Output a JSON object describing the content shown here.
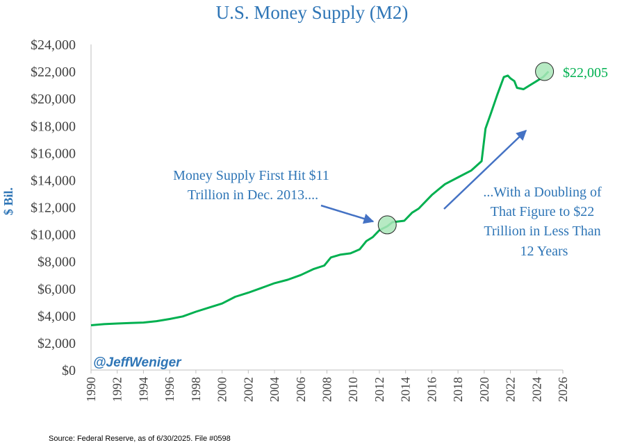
{
  "chart_data": {
    "type": "line",
    "title": "U.S. Money Supply (M2)",
    "ylabel": "$ Bil.",
    "xlabel": "",
    "xlim": [
      1990,
      2026
    ],
    "ylim": [
      0,
      24000
    ],
    "x_ticks": [
      1990,
      1992,
      1994,
      1996,
      1998,
      2000,
      2002,
      2004,
      2006,
      2008,
      2010,
      2012,
      2014,
      2016,
      2018,
      2020,
      2022,
      2024,
      2026
    ],
    "x_tick_labels": [
      "1990",
      "1992",
      "1994",
      "1996",
      "1998",
      "2000",
      "2002",
      "2004",
      "2006",
      "2008",
      "2010",
      "2012",
      "2014",
      "2016",
      "2018",
      "2020",
      "2022",
      "2024",
      "2026"
    ],
    "y_ticks": [
      0,
      2000,
      4000,
      6000,
      8000,
      10000,
      12000,
      14000,
      16000,
      18000,
      20000,
      22000,
      24000
    ],
    "y_tick_labels": [
      "$0",
      "$2,000",
      "$4,000",
      "$6,000",
      "$8,000",
      "$10,000",
      "$12,000",
      "$14,000",
      "$16,000",
      "$18,000",
      "$20,000",
      "$22,000",
      "$24,000"
    ],
    "grid": false,
    "colors": {
      "line": "#00b050",
      "text_blue": "#2e75b6",
      "arrow": "#4472c4",
      "highlight_fill": "#a9e6b8",
      "axis": "#bfbfbf"
    },
    "series": [
      {
        "name": "M2",
        "x": [
          1990.0,
          1991.0,
          1992.0,
          1993.0,
          1994.0,
          1995.0,
          1996.0,
          1997.0,
          1998.0,
          1999.0,
          2000.0,
          2001.0,
          2002.0,
          2003.0,
          2004.0,
          2005.0,
          2006.0,
          2007.0,
          2007.8,
          2008.3,
          2009.0,
          2009.8,
          2010.5,
          2011.0,
          2011.5,
          2012.0,
          2012.6,
          2013.0,
          2013.9,
          2014.5,
          2015.0,
          2016.0,
          2017.0,
          2018.0,
          2019.0,
          2019.8,
          2020.1,
          2020.25,
          2020.5,
          2021.0,
          2021.5,
          2021.8,
          2022.0,
          2022.3,
          2022.5,
          2023.0,
          2023.5,
          2024.0,
          2024.5,
          2024.9
        ],
        "values": [
          3300,
          3380,
          3430,
          3470,
          3500,
          3600,
          3760,
          3950,
          4300,
          4600,
          4900,
          5400,
          5700,
          6050,
          6400,
          6650,
          7000,
          7450,
          7700,
          8300,
          8500,
          8600,
          8900,
          9500,
          9800,
          10300,
          10600,
          10900,
          11000,
          11600,
          11900,
          12900,
          13700,
          14200,
          14700,
          15400,
          17800,
          18200,
          18900,
          20300,
          21600,
          21700,
          21500,
          21300,
          20800,
          20700,
          21000,
          21300,
          21600,
          22005
        ]
      }
    ],
    "highlights": [
      {
        "x": 2012.6,
        "y": 10700
      },
      {
        "x": 2024.6,
        "y": 22005
      }
    ],
    "annotations": {
      "end_value_label": "$22,005",
      "left_note_lines": [
        "Money Supply First Hit $11",
        "Trillion in Dec. 2013...."
      ],
      "right_note_lines": [
        "...With a Doubling of",
        "That Figure to $22",
        "Trillion in Less Than",
        "12 Years"
      ],
      "handle": "@JeffWeniger",
      "source": "Source: Federal Reserve, as of 6/30/2025. File #0598"
    }
  }
}
